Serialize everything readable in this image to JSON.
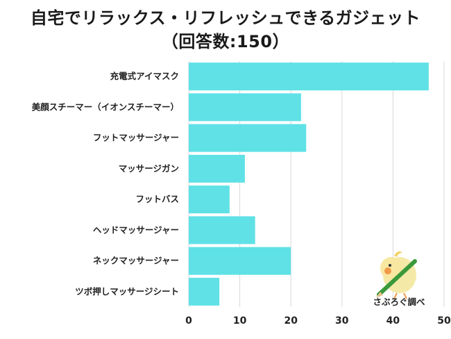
{
  "title_line1": "自宅でリラックス・リフレッシュできるガジェット",
  "title_line2": "（回答数:150）",
  "credit": "さぶろぐ調べ",
  "colors": {
    "bar": "#5fe1e6",
    "grid": "#d8d8d8",
    "text": "#222222"
  },
  "chart_data": {
    "type": "bar",
    "orientation": "horizontal",
    "title": "自宅でリラックス・リフレッシュできるガジェット（回答数:150）",
    "categories": [
      "充電式アイマスク",
      "美顔スチーマー（イオンスチーマー）",
      "フットマッサージャー",
      "マッサージガン",
      "フットバス",
      "ヘッドマッサージャー",
      "ネックマッサージャー",
      "ツボ押しマッサージシート"
    ],
    "values": [
      47,
      22,
      23,
      11,
      8,
      13,
      20,
      6
    ],
    "xlim": [
      0,
      50
    ],
    "xticks": [
      0,
      10,
      20,
      30,
      40,
      50
    ],
    "grid": true,
    "legend": "none"
  }
}
